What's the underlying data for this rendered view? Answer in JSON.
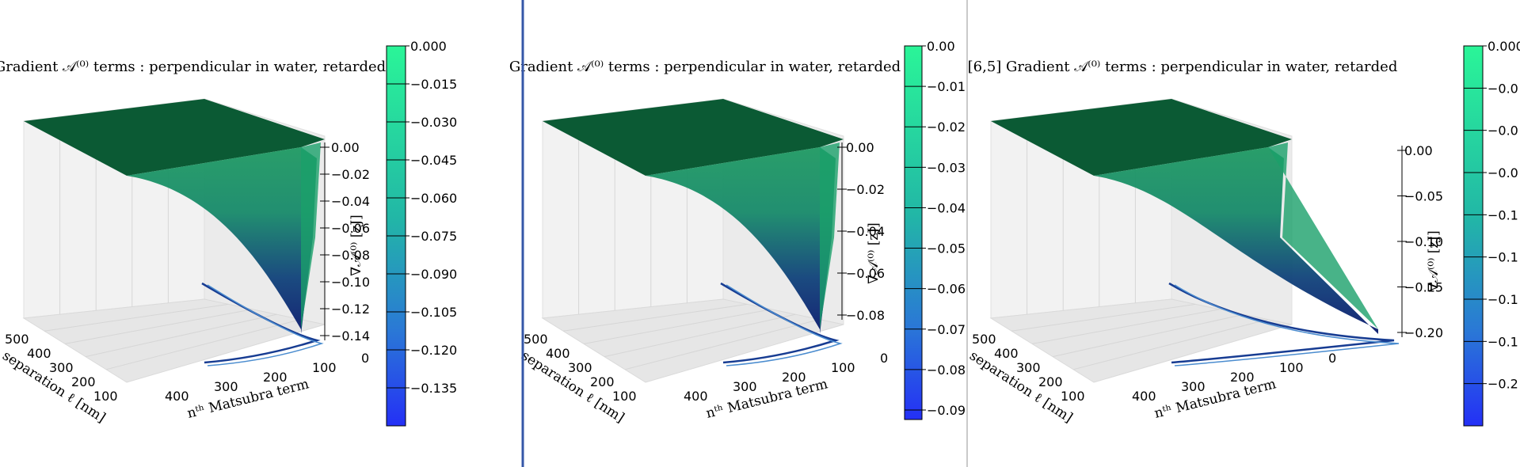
{
  "colors": {
    "surface_top": "#0b5a34",
    "surface_mid": "#1aa06a",
    "surface_deep": "#0a1a6e",
    "colorbar_high": "#2af598",
    "colorbar_low": "#2430f6",
    "divider_blue": "#3557a8",
    "divider_gray": "#b8b8b8"
  },
  "chart_data": [
    {
      "type": "surface3d",
      "title": "Gradient 𝒜⁽⁰⁾ terms : perpendicular in water, retarded",
      "title_prefix": "",
      "xlabel": "separation  ℓ  [nm]",
      "ylabel": "nᵗʰ Matsubra term",
      "zlabel": "∇𝒜⁽⁰⁾ [zJ]",
      "x_ticks": [
        "500",
        "400",
        "300",
        "200",
        "100"
      ],
      "y_ticks": [
        "400",
        "300",
        "200",
        "100",
        "0"
      ],
      "z_ticks": [
        "0.00",
        "−0.02",
        "−0.04",
        "−0.06",
        "−0.08",
        "−0.10",
        "−0.12",
        "−0.14"
      ],
      "zlim": [
        -0.15,
        0.0
      ],
      "colorbar_ticks": [
        "0.000",
        "−0.015",
        "−0.030",
        "−0.045",
        "−0.060",
        "−0.075",
        "−0.090",
        "−0.105",
        "−0.120",
        "−0.135"
      ],
      "colorbar_range": [
        -0.15,
        0.0
      ]
    },
    {
      "type": "surface3d",
      "title": "Gradient 𝒜⁽⁰⁾ terms : perpendicular in water, retarded",
      "title_prefix": "",
      "xlabel": "separation  ℓ  [nm]",
      "ylabel": "nᵗʰ Matsubra term",
      "zlabel": "∇𝒜⁽⁰⁾ [zJ]",
      "x_ticks": [
        "500",
        "400",
        "300",
        "200",
        "100"
      ],
      "y_ticks": [
        "400",
        "300",
        "200",
        "100",
        "0"
      ],
      "z_ticks": [
        "0.00",
        "−0.02",
        "−0.04",
        "−0.06",
        "−0.08"
      ],
      "zlim": [
        -0.09,
        0.0
      ],
      "colorbar_ticks": [
        "0.00",
        "−0.01",
        "−0.02",
        "−0.03",
        "−0.04",
        "−0.05",
        "−0.06",
        "−0.07",
        "−0.08",
        "−0.09"
      ],
      "colorbar_range": [
        -0.093,
        0.0
      ]
    },
    {
      "type": "surface3d",
      "title": "Gradient 𝒜⁽⁰⁾ terms : perpendicular in water, retarded",
      "title_prefix": "[6,5]",
      "xlabel": "separation  ℓ  [nm]",
      "ylabel": "nᵗʰ Matsubra term",
      "zlabel": "∇𝒜⁽⁰⁾ [zJ]",
      "x_ticks": [
        "500",
        "400",
        "300",
        "200",
        "100"
      ],
      "y_ticks": [
        "400",
        "300",
        "200",
        "100",
        "0"
      ],
      "z_ticks": [
        "0.00",
        "−0.05",
        "−0.10",
        "−0.15",
        "−0.20"
      ],
      "zlim": [
        -0.22,
        0.0
      ],
      "colorbar_ticks": [
        "0.000",
        "−0.0",
        "−0.0",
        "−0.0",
        "−0.1",
        "−0.1",
        "−0.1",
        "−0.1",
        "−0.2"
      ],
      "colorbar_range": [
        -0.22,
        0.0
      ]
    }
  ]
}
